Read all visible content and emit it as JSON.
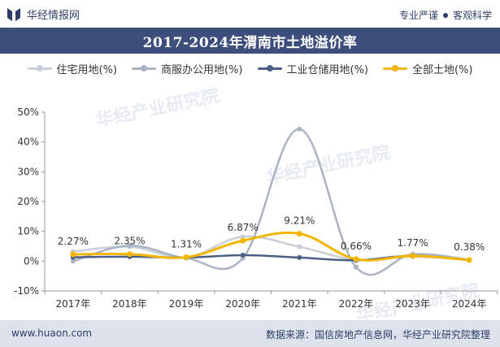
{
  "header": {
    "brand_name": "华经情报网",
    "tagline_left": "专业严谨",
    "tagline_right": "客观科学",
    "brand_color": "#2c3e66"
  },
  "title": "2017-2024年渭南市土地溢价率",
  "footer": {
    "site": "www.huaon.com",
    "source": "数据来源：国信房地产信息网，华经产业研究院整理"
  },
  "watermark": "华经产业研究院",
  "chart_data": {
    "type": "line",
    "categories": [
      "2017年",
      "2018年",
      "2019年",
      "2020年",
      "2021年",
      "2022年",
      "2023年",
      "2024年"
    ],
    "ylim": [
      -10,
      50
    ],
    "yticks": [
      -10,
      0,
      10,
      20,
      30,
      40,
      50
    ],
    "ytick_labels": [
      "-10%",
      "0%",
      "10%",
      "20%",
      "30%",
      "40%",
      "50%"
    ],
    "grid": false,
    "legend_position": "top",
    "series": [
      {
        "name": "住宅用地(%)",
        "color": "#c9cfd8",
        "values": [
          3.2,
          4.8,
          1.3,
          8.2,
          4.8,
          0.5,
          1.5,
          0.5
        ]
      },
      {
        "name": "商服办公用地(%)",
        "color": "#aab3c3",
        "values": [
          0.0,
          5.2,
          1.0,
          1.0,
          44.3,
          -2.0,
          2.3,
          0.5
        ]
      },
      {
        "name": "工业仓储用地(%)",
        "color": "#4d5f86",
        "values": [
          1.3,
          1.5,
          1.2,
          2.0,
          1.2,
          0.3,
          1.8,
          0.3
        ]
      },
      {
        "name": "全部土地(%)",
        "color": "#f2b600",
        "values": [
          2.27,
          2.35,
          1.31,
          6.87,
          9.21,
          0.66,
          1.77,
          0.38
        ],
        "labels": [
          "2.27%",
          "2.35%",
          "1.31%",
          "6.87%",
          "9.21%",
          "0.66%",
          "1.77%",
          "0.38%"
        ]
      }
    ]
  }
}
